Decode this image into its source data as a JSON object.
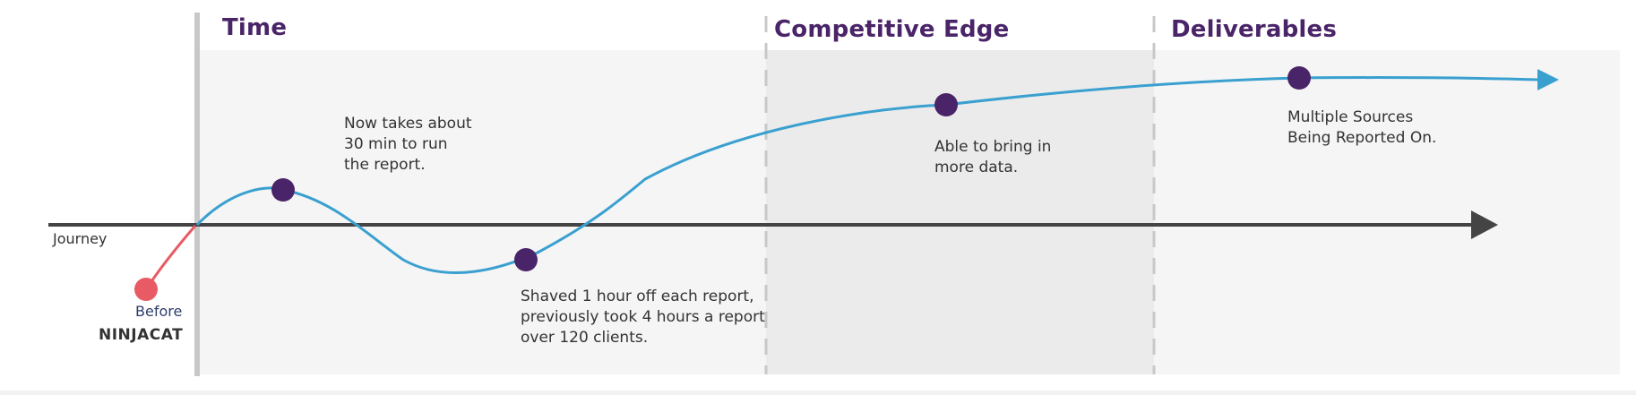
{
  "sections": [
    {
      "title": "Time"
    },
    {
      "title": "Competitive Edge"
    },
    {
      "title": "Deliverables"
    }
  ],
  "axis": {
    "label": "Journey"
  },
  "start": {
    "before_label": "Before",
    "brand": "NINJACAT"
  },
  "milestones": [
    {
      "lines": [
        "Now takes about",
        "30 min to run",
        "the report."
      ]
    },
    {
      "lines": [
        "Shaved 1 hour off each report,",
        "previously took 4 hours a report",
        "over 120 clients."
      ]
    },
    {
      "lines": [
        "Able to bring in",
        "more data."
      ]
    },
    {
      "lines": [
        "Multiple Sources",
        "Being Reported On."
      ]
    }
  ],
  "colors": {
    "title": "#4a2468",
    "curve": "#3aa0d0",
    "dot": "#4a2468",
    "start_dot": "#e85a64",
    "axis": "#444444",
    "panel": "#f5f5f5",
    "panel_highlight": "#ebebeb"
  }
}
